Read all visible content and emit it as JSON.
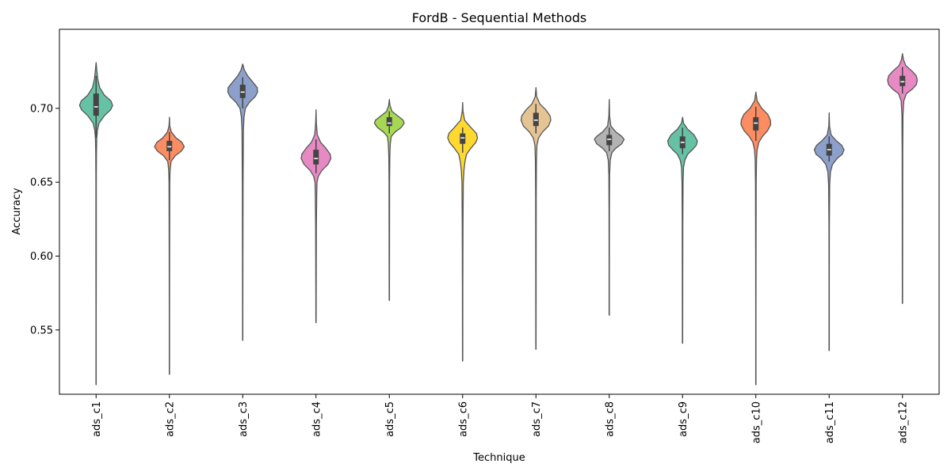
{
  "chart_data": {
    "type": "violin",
    "title": "FordB - Sequential Methods",
    "xlabel": "Technique",
    "ylabel": "Accuracy",
    "ylim": [
      0.5065,
      0.7535
    ],
    "yticks": [
      0.55,
      0.6,
      0.65,
      0.7
    ],
    "ytick_labels": [
      "0.55",
      "0.60",
      "0.65",
      "0.70"
    ],
    "grid": false,
    "categories": [
      "ads_c1",
      "ads_c2",
      "ads_c3",
      "ads_c4",
      "ads_c5",
      "ads_c6",
      "ads_c7",
      "ads_c8",
      "ads_c9",
      "ads_c10",
      "ads_c11",
      "ads_c12"
    ],
    "series": [
      {
        "category": "ads_c1",
        "min": 0.513,
        "max": 0.731,
        "q1": 0.695,
        "median": 0.701,
        "q3": 0.71,
        "whisker_low": 0.68,
        "whisker_high": 0.722,
        "mode": 0.702,
        "color": "#66c2a5",
        "density": [
          [
            0.731,
            0
          ],
          [
            0.726,
            0.02
          ],
          [
            0.72,
            0.05
          ],
          [
            0.714,
            0.11
          ],
          [
            0.709,
            0.25
          ],
          [
            0.705,
            0.45
          ],
          [
            0.702,
            0.5
          ],
          [
            0.699,
            0.44
          ],
          [
            0.695,
            0.25
          ],
          [
            0.69,
            0.09
          ],
          [
            0.685,
            0.04
          ],
          [
            0.68,
            0.02
          ],
          [
            0.67,
            0.01
          ],
          [
            0.65,
            0.007
          ],
          [
            0.6,
            0.005
          ],
          [
            0.56,
            0.004
          ],
          [
            0.513,
            0.003
          ]
        ]
      },
      {
        "category": "ads_c2",
        "min": 0.52,
        "max": 0.694,
        "q1": 0.671,
        "median": 0.674,
        "q3": 0.678,
        "whisker_low": 0.665,
        "whisker_high": 0.684,
        "mode": 0.674,
        "color": "#fc8d62",
        "density": [
          [
            0.694,
            0
          ],
          [
            0.688,
            0.01
          ],
          [
            0.684,
            0.06
          ],
          [
            0.68,
            0.2
          ],
          [
            0.677,
            0.38
          ],
          [
            0.674,
            0.45
          ],
          [
            0.671,
            0.36
          ],
          [
            0.668,
            0.18
          ],
          [
            0.664,
            0.05
          ],
          [
            0.658,
            0.02
          ],
          [
            0.65,
            0.012
          ],
          [
            0.6,
            0.006
          ],
          [
            0.56,
            0.004
          ],
          [
            0.52,
            0.003
          ]
        ]
      },
      {
        "category": "ads_c3",
        "min": 0.543,
        "max": 0.73,
        "q1": 0.707,
        "median": 0.711,
        "q3": 0.716,
        "whisker_low": 0.7,
        "whisker_high": 0.721,
        "mode": 0.712,
        "color": "#8da0cb",
        "density": [
          [
            0.73,
            0
          ],
          [
            0.726,
            0.05
          ],
          [
            0.722,
            0.15
          ],
          [
            0.718,
            0.3
          ],
          [
            0.714,
            0.44
          ],
          [
            0.711,
            0.45
          ],
          [
            0.708,
            0.38
          ],
          [
            0.704,
            0.2
          ],
          [
            0.7,
            0.08
          ],
          [
            0.694,
            0.04
          ],
          [
            0.685,
            0.02
          ],
          [
            0.65,
            0.01
          ],
          [
            0.6,
            0.006
          ],
          [
            0.56,
            0.004
          ],
          [
            0.543,
            0.003
          ]
        ]
      },
      {
        "category": "ads_c4",
        "min": 0.555,
        "max": 0.699,
        "q1": 0.662,
        "median": 0.666,
        "q3": 0.672,
        "whisker_low": 0.656,
        "whisker_high": 0.679,
        "mode": 0.666,
        "color": "#e78ac3",
        "density": [
          [
            0.699,
            0
          ],
          [
            0.69,
            0.01
          ],
          [
            0.682,
            0.04
          ],
          [
            0.677,
            0.14
          ],
          [
            0.673,
            0.3
          ],
          [
            0.669,
            0.43
          ],
          [
            0.666,
            0.45
          ],
          [
            0.662,
            0.36
          ],
          [
            0.658,
            0.18
          ],
          [
            0.654,
            0.07
          ],
          [
            0.65,
            0.03
          ],
          [
            0.64,
            0.02
          ],
          [
            0.62,
            0.012
          ],
          [
            0.58,
            0.007
          ],
          [
            0.555,
            0.004
          ]
        ]
      },
      {
        "category": "ads_c5",
        "min": 0.57,
        "max": 0.706,
        "q1": 0.688,
        "median": 0.69,
        "q3": 0.694,
        "whisker_low": 0.683,
        "whisker_high": 0.698,
        "mode": 0.69,
        "color": "#a6d854",
        "density": [
          [
            0.706,
            0
          ],
          [
            0.702,
            0.02
          ],
          [
            0.698,
            0.08
          ],
          [
            0.695,
            0.25
          ],
          [
            0.692,
            0.42
          ],
          [
            0.69,
            0.45
          ],
          [
            0.687,
            0.36
          ],
          [
            0.684,
            0.18
          ],
          [
            0.681,
            0.06
          ],
          [
            0.676,
            0.03
          ],
          [
            0.668,
            0.015
          ],
          [
            0.65,
            0.008
          ],
          [
            0.6,
            0.005
          ],
          [
            0.57,
            0.003
          ]
        ]
      },
      {
        "category": "ads_c6",
        "min": 0.529,
        "max": 0.704,
        "q1": 0.676,
        "median": 0.68,
        "q3": 0.683,
        "whisker_low": 0.67,
        "whisker_high": 0.687,
        "mode": 0.68,
        "color": "#ffd92f",
        "density": [
          [
            0.704,
            0
          ],
          [
            0.698,
            0.01
          ],
          [
            0.692,
            0.06
          ],
          [
            0.687,
            0.25
          ],
          [
            0.683,
            0.42
          ],
          [
            0.68,
            0.45
          ],
          [
            0.677,
            0.4
          ],
          [
            0.673,
            0.25
          ],
          [
            0.669,
            0.12
          ],
          [
            0.664,
            0.07
          ],
          [
            0.658,
            0.04
          ],
          [
            0.65,
            0.02
          ],
          [
            0.62,
            0.01
          ],
          [
            0.58,
            0.005
          ],
          [
            0.529,
            0.003
          ]
        ]
      },
      {
        "category": "ads_c7",
        "min": 0.537,
        "max": 0.714,
        "q1": 0.688,
        "median": 0.692,
        "q3": 0.697,
        "whisker_low": 0.683,
        "whisker_high": 0.703,
        "mode": 0.692,
        "color": "#e5c494",
        "density": [
          [
            0.714,
            0
          ],
          [
            0.708,
            0.02
          ],
          [
            0.703,
            0.12
          ],
          [
            0.699,
            0.3
          ],
          [
            0.695,
            0.43
          ],
          [
            0.692,
            0.45
          ],
          [
            0.688,
            0.38
          ],
          [
            0.684,
            0.2
          ],
          [
            0.68,
            0.08
          ],
          [
            0.675,
            0.03
          ],
          [
            0.665,
            0.015
          ],
          [
            0.64,
            0.008
          ],
          [
            0.59,
            0.005
          ],
          [
            0.537,
            0.003
          ]
        ]
      },
      {
        "category": "ads_c8",
        "min": 0.56,
        "max": 0.706,
        "q1": 0.675,
        "median": 0.679,
        "q3": 0.682,
        "whisker_low": 0.671,
        "whisker_high": 0.687,
        "mode": 0.679,
        "color": "#b3b3b3",
        "density": [
          [
            0.706,
            0
          ],
          [
            0.695,
            0.01
          ],
          [
            0.688,
            0.05
          ],
          [
            0.684,
            0.2
          ],
          [
            0.681,
            0.38
          ],
          [
            0.679,
            0.45
          ],
          [
            0.676,
            0.38
          ],
          [
            0.673,
            0.2
          ],
          [
            0.67,
            0.08
          ],
          [
            0.665,
            0.03
          ],
          [
            0.655,
            0.01
          ],
          [
            0.63,
            0.006
          ],
          [
            0.59,
            0.004
          ],
          [
            0.56,
            0.003
          ]
        ]
      },
      {
        "category": "ads_c9",
        "min": 0.541,
        "max": 0.694,
        "q1": 0.673,
        "median": 0.677,
        "q3": 0.681,
        "whisker_low": 0.669,
        "whisker_high": 0.687,
        "mode": 0.677,
        "color": "#66c2a5",
        "density": [
          [
            0.694,
            0
          ],
          [
            0.69,
            0.03
          ],
          [
            0.686,
            0.15
          ],
          [
            0.682,
            0.35
          ],
          [
            0.678,
            0.45
          ],
          [
            0.675,
            0.42
          ],
          [
            0.672,
            0.3
          ],
          [
            0.669,
            0.16
          ],
          [
            0.665,
            0.07
          ],
          [
            0.66,
            0.03
          ],
          [
            0.65,
            0.015
          ],
          [
            0.62,
            0.008
          ],
          [
            0.58,
            0.005
          ],
          [
            0.541,
            0.003
          ]
        ]
      },
      {
        "category": "ads_c10",
        "min": 0.513,
        "max": 0.711,
        "q1": 0.685,
        "median": 0.69,
        "q3": 0.694,
        "whisker_low": 0.678,
        "whisker_high": 0.701,
        "mode": 0.69,
        "color": "#fc8d62",
        "density": [
          [
            0.711,
            0
          ],
          [
            0.705,
            0.04
          ],
          [
            0.7,
            0.18
          ],
          [
            0.696,
            0.36
          ],
          [
            0.692,
            0.44
          ],
          [
            0.689,
            0.45
          ],
          [
            0.685,
            0.36
          ],
          [
            0.681,
            0.2
          ],
          [
            0.677,
            0.09
          ],
          [
            0.672,
            0.04
          ],
          [
            0.665,
            0.02
          ],
          [
            0.65,
            0.01
          ],
          [
            0.6,
            0.006
          ],
          [
            0.56,
            0.004
          ],
          [
            0.513,
            0.003
          ]
        ]
      },
      {
        "category": "ads_c11",
        "min": 0.536,
        "max": 0.697,
        "q1": 0.668,
        "median": 0.672,
        "q3": 0.676,
        "whisker_low": 0.664,
        "whisker_high": 0.681,
        "mode": 0.672,
        "color": "#8da0cb",
        "density": [
          [
            0.697,
            0
          ],
          [
            0.688,
            0.01
          ],
          [
            0.682,
            0.06
          ],
          [
            0.678,
            0.22
          ],
          [
            0.675,
            0.38
          ],
          [
            0.672,
            0.45
          ],
          [
            0.669,
            0.4
          ],
          [
            0.666,
            0.24
          ],
          [
            0.662,
            0.1
          ],
          [
            0.657,
            0.04
          ],
          [
            0.648,
            0.015
          ],
          [
            0.62,
            0.007
          ],
          [
            0.58,
            0.004
          ],
          [
            0.536,
            0.003
          ]
        ]
      },
      {
        "category": "ads_c12",
        "min": 0.568,
        "max": 0.737,
        "q1": 0.715,
        "median": 0.718,
        "q3": 0.722,
        "whisker_low": 0.71,
        "whisker_high": 0.728,
        "mode": 0.719,
        "color": "#e78ac3",
        "density": [
          [
            0.737,
            0
          ],
          [
            0.733,
            0.03
          ],
          [
            0.729,
            0.1
          ],
          [
            0.725,
            0.3
          ],
          [
            0.722,
            0.42
          ],
          [
            0.719,
            0.45
          ],
          [
            0.716,
            0.42
          ],
          [
            0.713,
            0.3
          ],
          [
            0.71,
            0.12
          ],
          [
            0.705,
            0.04
          ],
          [
            0.695,
            0.015
          ],
          [
            0.67,
            0.008
          ],
          [
            0.62,
            0.005
          ],
          [
            0.568,
            0.003
          ]
        ]
      }
    ]
  }
}
